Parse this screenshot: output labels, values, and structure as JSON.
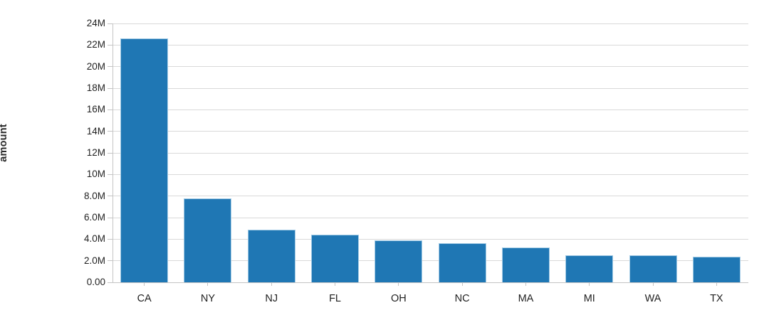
{
  "chart_data": {
    "type": "bar",
    "title": "",
    "xlabel": "",
    "ylabel": "amount",
    "categories": [
      "CA",
      "NY",
      "NJ",
      "FL",
      "OH",
      "NC",
      "MA",
      "MI",
      "WA",
      "TX"
    ],
    "values": [
      22600000,
      7800000,
      4900000,
      4400000,
      3900000,
      3650000,
      3250000,
      2500000,
      2480000,
      2380000
    ],
    "ylim": [
      0,
      24000000
    ],
    "y_tick_step": 2000000,
    "y_tick_labels": [
      "0.00",
      "2.0M",
      "4.0M",
      "6.0M",
      "8.0M",
      "10M",
      "12M",
      "14M",
      "16M",
      "18M",
      "20M",
      "22M",
      "24M"
    ],
    "grid": true,
    "legend": false,
    "colors": {
      "bar_fill": "#1f77b4",
      "bar_border": "#a3cbe5",
      "gridline": "#d9d9d9",
      "axis": "#c4c4c4",
      "tick_text": "#1f1f1f",
      "background": "#ffffff"
    }
  }
}
